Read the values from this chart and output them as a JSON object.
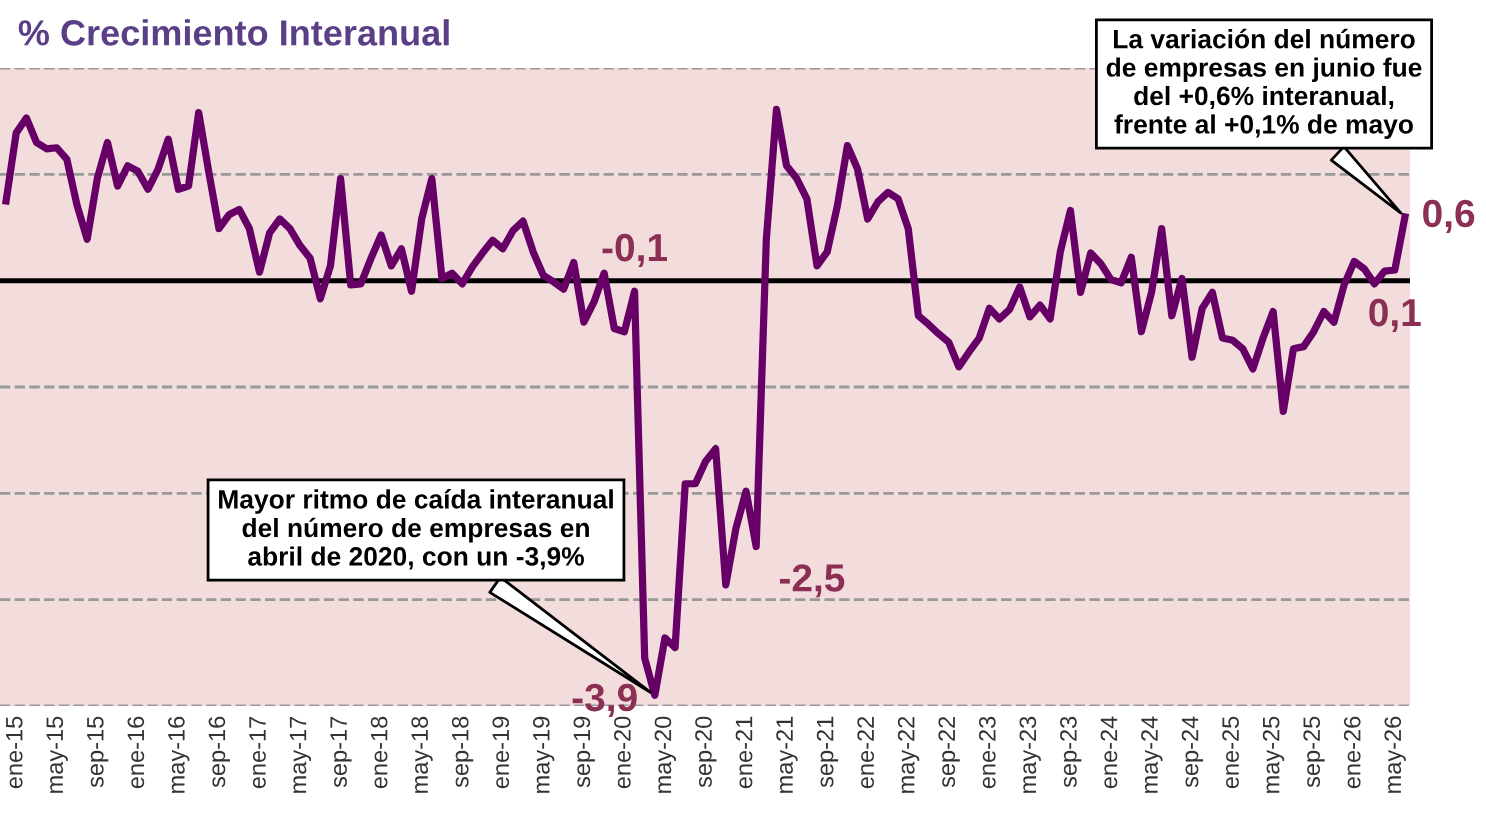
{
  "chart_data": {
    "type": "line",
    "title": "% Crecimiento Interanual",
    "categories": [
      null,
      "ene-15",
      null,
      null,
      null,
      "may-15",
      null,
      null,
      null,
      "sep-15",
      null,
      null,
      null,
      "ene-16",
      null,
      null,
      null,
      "may-16",
      null,
      null,
      null,
      "sep-16",
      null,
      null,
      null,
      "ene-17",
      null,
      null,
      null,
      "may-17",
      null,
      null,
      null,
      "sep-17",
      null,
      null,
      null,
      "ene-18",
      null,
      null,
      null,
      "may-18",
      null,
      null,
      null,
      "sep-18",
      null,
      null,
      null,
      "ene-19",
      null,
      null,
      null,
      "may-19",
      null,
      null,
      null,
      "sep-19",
      null,
      null,
      null,
      "ene-20",
      null,
      null,
      null,
      "may-20",
      null,
      null,
      null,
      "sep-20",
      null,
      null,
      null,
      "ene-21",
      null,
      null,
      null,
      "may-21",
      null,
      null,
      null,
      "sep-21",
      null,
      null,
      null,
      "ene-22",
      null,
      null,
      null,
      "may-22",
      null,
      null,
      null,
      "sep-22",
      null,
      null,
      null,
      "ene-23",
      null,
      null,
      null,
      "may-23",
      null,
      null,
      null,
      "sep-23",
      null,
      null,
      null,
      "ene-24",
      null,
      null,
      null,
      "may-24",
      null,
      null,
      null,
      "sep-24",
      null,
      null,
      null,
      "ene-25",
      null,
      null,
      null,
      "may-25",
      null,
      null,
      null,
      "sep-25",
      null,
      null,
      null,
      "ene-26",
      null,
      null,
      null,
      "may-26",
      null
    ],
    "series": [
      {
        "color": "#660066",
        "values": [
          0.75,
          1.39,
          1.53,
          1.3,
          1.24,
          1.25,
          1.14,
          0.71,
          0.39,
          0.96,
          1.3,
          0.89,
          1.08,
          1.03,
          0.86,
          1.05,
          1.33,
          0.86,
          0.89,
          1.58,
          1.02,
          0.49,
          0.62,
          0.67,
          0.49,
          0.08,
          0.45,
          0.58,
          0.49,
          0.33,
          0.21,
          -0.17,
          0.14,
          0.96,
          -0.04,
          -0.03,
          0.21,
          0.43,
          0.14,
          0.3,
          -0.1,
          0.58,
          0.96,
          0.02,
          0.07,
          -0.03,
          0.13,
          0.26,
          0.38,
          0.3,
          0.47,
          0.56,
          0.27,
          0.05,
          -0.01,
          -0.08,
          0.17,
          -0.39,
          -0.2,
          0.07,
          -0.45,
          -0.48,
          -0.1,
          -3.55,
          -3.9,
          -3.36,
          -3.45,
          -1.91,
          -1.91,
          -1.7,
          -1.58,
          -2.86,
          -2.33,
          -1.98,
          -2.5,
          0.39,
          1.61,
          1.08,
          0.96,
          0.77,
          0.14,
          0.27,
          0.7,
          1.27,
          1.05,
          0.58,
          0.74,
          0.83,
          0.77,
          0.49,
          -0.33,
          -0.41,
          -0.5,
          -0.58,
          -0.81,
          -0.67,
          -0.54,
          -0.26,
          -0.36,
          -0.27,
          -0.06,
          -0.34,
          -0.23,
          -0.36,
          0.27,
          0.66,
          -0.11,
          0.26,
          0.16,
          0.01,
          -0.02,
          0.22,
          -0.48,
          -0.11,
          0.49,
          -0.33,
          0.02,
          -0.72,
          -0.26,
          -0.11,
          -0.54,
          -0.56,
          -0.64,
          -0.83,
          -0.54,
          -0.29,
          -1.23,
          -0.64,
          -0.62,
          -0.48,
          -0.29,
          -0.39,
          -0.04,
          0.18,
          0.11,
          -0.03,
          0.09,
          0.1,
          0.6
        ],
        "value_labels": [
          null,
          null,
          null,
          null,
          null,
          null,
          null,
          null,
          null,
          null,
          null,
          null,
          null,
          null,
          null,
          null,
          null,
          null,
          null,
          null,
          null,
          null,
          null,
          null,
          null,
          null,
          null,
          null,
          null,
          null,
          null,
          null,
          null,
          null,
          null,
          null,
          null,
          null,
          null,
          null,
          null,
          null,
          null,
          null,
          null,
          null,
          null,
          null,
          null,
          null,
          null,
          null,
          null,
          null,
          null,
          null,
          null,
          null,
          null,
          null,
          null,
          null,
          "-0,1",
          null,
          "-3,9",
          null,
          null,
          null,
          null,
          null,
          null,
          null,
          null,
          null,
          "-2,5",
          null,
          null,
          null,
          null,
          null,
          null,
          null,
          null,
          null,
          null,
          null,
          null,
          null,
          null,
          null,
          null,
          null,
          null,
          null,
          null,
          null,
          null,
          null,
          null,
          null,
          null,
          null,
          null,
          null,
          null,
          null,
          null,
          null,
          null,
          null,
          null,
          null,
          null,
          null,
          null,
          null,
          null,
          null,
          null,
          null,
          null,
          null,
          null,
          null,
          null,
          null,
          null,
          null,
          null,
          null,
          null,
          null,
          null,
          null,
          null,
          null,
          null,
          "0,1",
          "0,6"
        ]
      }
    ],
    "ylim": [
      -4,
      2
    ],
    "yticks": [
      {
        "value": -4,
        "label": null
      },
      {
        "value": -3,
        "label": null
      },
      {
        "value": -2,
        "label": null
      },
      {
        "value": -1,
        "label": null
      },
      {
        "value": 0,
        "label": null
      },
      {
        "value": 1,
        "label": null
      },
      {
        "value": 2,
        "label": null
      }
    ],
    "tick_labels": "x",
    "grid": "y",
    "marker": "none",
    "line_style": "solid",
    "ref_lines": [
      {
        "axis": "y",
        "value": 0,
        "color": "#000000",
        "line_style": "solid"
      }
    ],
    "annotations": [
      "Mayor ritmo de caída interanual\ndel número de empresas en\nabril de 2020, con un -3,9%",
      "La variación del número\nde empresas en junio fue\ndel +0,6% interanual,\nfrente al +0,1% de mayo"
    ]
  }
}
